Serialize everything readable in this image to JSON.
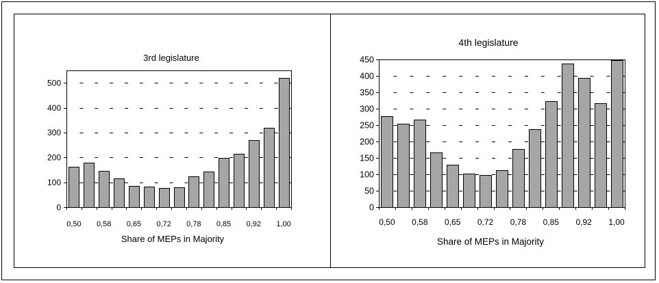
{
  "chart_data": [
    {
      "type": "bar",
      "title": "3rd legislature",
      "xlabel": "Share of MEPs in Majority",
      "categories": [
        "0,50",
        "",
        "0,58",
        "",
        "0,65",
        "",
        "0,72",
        "",
        "0,78",
        "",
        "0,85",
        "",
        "0,92",
        "",
        "1,00"
      ],
      "values": [
        162,
        178,
        145,
        115,
        86,
        82,
        78,
        81,
        125,
        142,
        197,
        214,
        270,
        320,
        520
      ],
      "ylim": [
        0,
        550
      ],
      "yticks": [
        0,
        100,
        200,
        300,
        400,
        500
      ],
      "grid": true,
      "bar_color": "#a6a6a6"
    },
    {
      "type": "bar",
      "title": "4th legislature",
      "xlabel": "Share of MEPs in Majority",
      "categories": [
        "0,50",
        "",
        "0,58",
        "",
        "0,65",
        "",
        "0,72",
        "",
        "0,78",
        "",
        "0,85",
        "",
        "0,92",
        "",
        "1,00"
      ],
      "values": [
        277,
        254,
        267,
        167,
        129,
        102,
        98,
        112,
        177,
        238,
        323,
        438,
        394,
        317,
        448
      ],
      "ylim": [
        0,
        450
      ],
      "yticks": [
        0,
        50,
        100,
        150,
        200,
        250,
        300,
        350,
        400,
        450
      ],
      "grid": true,
      "bar_color": "#a6a6a6"
    }
  ]
}
